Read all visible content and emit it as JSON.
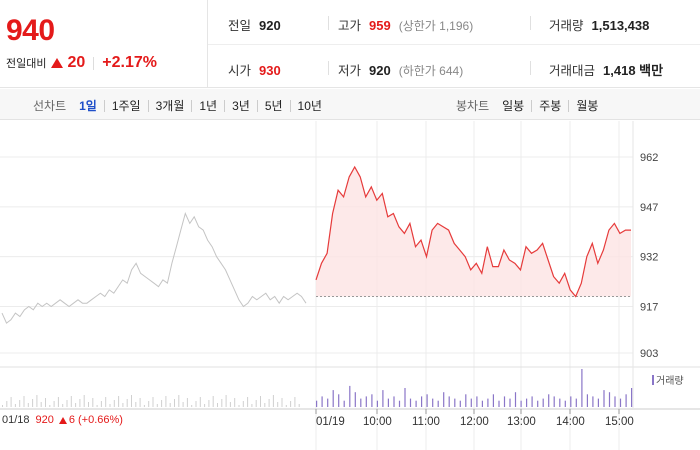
{
  "quote": {
    "price": "940",
    "change_label": "전일대비",
    "change_value": "20",
    "change_pct": "+2.17%"
  },
  "stats": {
    "prev_label": "전일",
    "prev_value": "920",
    "high_label": "고가",
    "high_value": "959",
    "upper_limit": "(상한가 1,196)",
    "volume_label": "거래량",
    "volume_value": "1,513,438",
    "open_label": "시가",
    "open_value": "930",
    "low_label": "저가",
    "low_value": "920",
    "lower_limit": "(하한가 644)",
    "amount_label": "거래대금",
    "amount_value": "1,418 백만"
  },
  "line_tabs": {
    "title": "선차트",
    "items": [
      "1일",
      "1주일",
      "3개월",
      "1년",
      "3년",
      "5년",
      "10년"
    ],
    "active": "1일"
  },
  "candle_tabs": {
    "title": "봉차트",
    "items": [
      "일봉",
      "주봉",
      "월봉"
    ]
  },
  "volume_legend": "거래량",
  "footer": {
    "prev_date": "01/18",
    "prev_close": "920",
    "prev_change": "6",
    "prev_change_pct": "(+0.66%)"
  },
  "colors": {
    "up": "#e41a1a",
    "today_line": "#e63b3b",
    "prev_line": "#c4c4c4",
    "volume": "#8a76c8",
    "active_tab": "#1f4fc9"
  },
  "chart_data": {
    "type": "line",
    "y_ticks": [
      "962",
      "947",
      "932",
      "917",
      "903"
    ],
    "x_ticks": [
      "01/19",
      "10:00",
      "11:00",
      "12:00",
      "13:00",
      "14:00",
      "15:00"
    ],
    "ylim": [
      903,
      962
    ],
    "reference_price": 920,
    "prev_day_series": [
      915,
      912,
      913,
      915,
      914,
      916,
      917,
      916,
      918,
      917,
      918,
      917,
      918,
      919,
      918,
      917,
      918,
      919,
      918,
      918,
      919,
      920,
      921,
      920,
      922,
      921,
      923,
      925,
      924,
      928,
      930,
      927,
      926,
      925,
      924,
      923,
      925,
      924,
      930,
      935,
      940,
      945,
      942,
      944,
      941,
      940,
      937,
      935,
      932,
      930,
      928,
      925,
      922,
      919,
      917,
      918,
      920,
      919,
      920,
      921,
      919,
      920,
      918,
      920,
      919,
      920,
      921,
      920,
      918
    ],
    "today_series": [
      925,
      930,
      933,
      945,
      952,
      950,
      956,
      959,
      956,
      950,
      953,
      949,
      951,
      944,
      945,
      941,
      939,
      942,
      935,
      937,
      932,
      940,
      942,
      941,
      940,
      936,
      934,
      932,
      928,
      930,
      927,
      935,
      929,
      929,
      934,
      931,
      930,
      928,
      935,
      933,
      934,
      936,
      931,
      926,
      924,
      927,
      922,
      920,
      924,
      932,
      936,
      930,
      934,
      940,
      942,
      939,
      940,
      940
    ],
    "volume_today": [
      3,
      5,
      4,
      8,
      6,
      3,
      10,
      7,
      4,
      5,
      6,
      3,
      8,
      4,
      5,
      3,
      9,
      4,
      3,
      5,
      6,
      4,
      3,
      7,
      5,
      4,
      3,
      6,
      4,
      5,
      3,
      4,
      6,
      3,
      5,
      4,
      7,
      3,
      4,
      5,
      3,
      4,
      6,
      5,
      4,
      3,
      5,
      4,
      18,
      6,
      5,
      4,
      8,
      7,
      5,
      4,
      6,
      9
    ]
  }
}
